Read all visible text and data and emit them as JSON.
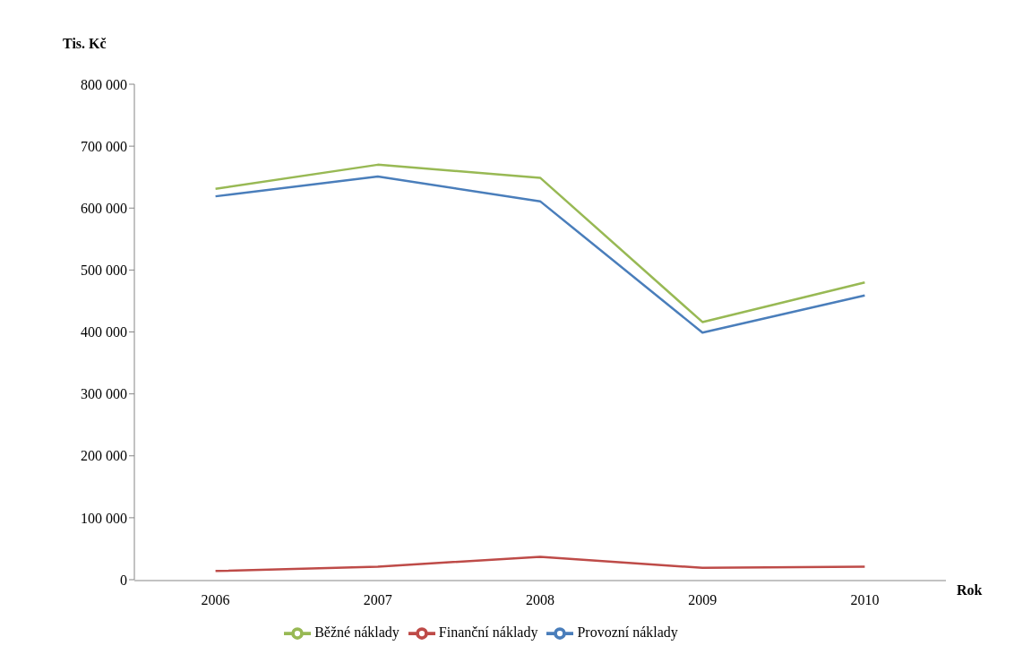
{
  "chart_data": {
    "type": "line",
    "xlabel": "Rok",
    "ylabel": "Tis. Kč",
    "categories": [
      "2006",
      "2007",
      "2008",
      "2009",
      "2010"
    ],
    "series": [
      {
        "name": "Provozní náklady",
        "color": "#4a7ebb",
        "values": [
          619000,
          651000,
          611000,
          399000,
          459000
        ]
      },
      {
        "name": "Finanční náklady",
        "color": "#be4b48",
        "values": [
          14000,
          21000,
          37000,
          19000,
          21000
        ]
      },
      {
        "name": "Běžné náklady",
        "color": "#98b954",
        "values": [
          631000,
          670000,
          649000,
          416000,
          480000
        ]
      }
    ],
    "ylim": [
      0,
      800000
    ],
    "yticks": [
      {
        "value": 0,
        "label": "0"
      },
      {
        "value": 100000,
        "label": "100 000"
      },
      {
        "value": 200000,
        "label": "200 000"
      },
      {
        "value": 300000,
        "label": "300 000"
      },
      {
        "value": 400000,
        "label": "400 000"
      },
      {
        "value": 500000,
        "label": "500 000"
      },
      {
        "value": 600000,
        "label": "600 000"
      },
      {
        "value": 700000,
        "label": "700 000"
      },
      {
        "value": 800000,
        "label": "800 000"
      }
    ],
    "legend": "bottom",
    "marker": "none",
    "line_style": "solid"
  }
}
